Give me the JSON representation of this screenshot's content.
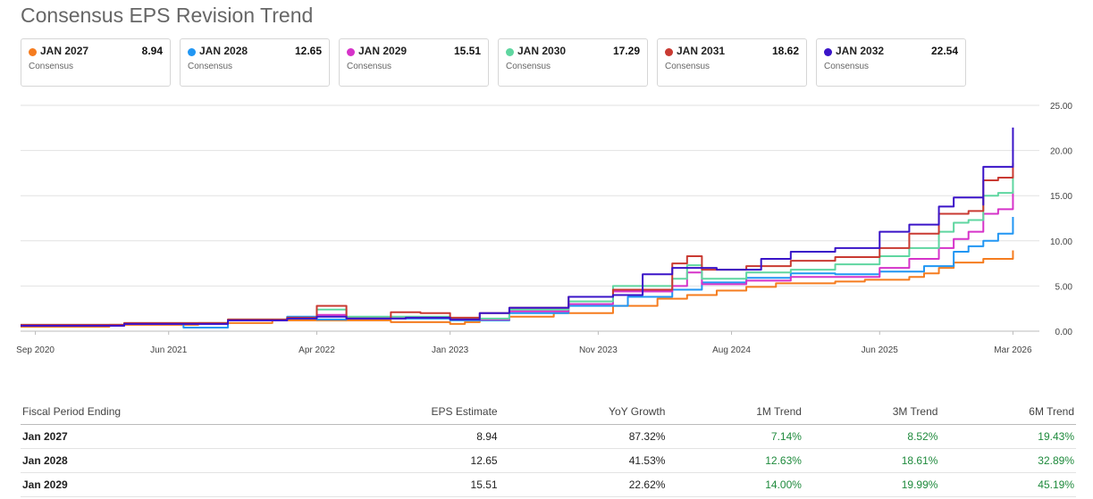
{
  "page_title": "Consensus EPS Revision Trend",
  "cards": [
    {
      "label": "JAN 2027",
      "value": "8.94",
      "sub": "Consensus",
      "color": "#f57c1f"
    },
    {
      "label": "JAN 2028",
      "value": "12.65",
      "sub": "Consensus",
      "color": "#2196f3"
    },
    {
      "label": "JAN 2029",
      "value": "15.51",
      "sub": "Consensus",
      "color": "#d633c9"
    },
    {
      "label": "JAN 2030",
      "value": "17.29",
      "sub": "Consensus",
      "color": "#5fd6a0"
    },
    {
      "label": "JAN 2031",
      "value": "18.62",
      "sub": "Consensus",
      "color": "#c93a32"
    },
    {
      "label": "JAN 2032",
      "value": "22.54",
      "sub": "Consensus",
      "color": "#3a14c8"
    }
  ],
  "chart_data": {
    "type": "line",
    "title": "Consensus EPS Revision Trend",
    "xlabel": "",
    "ylabel": "",
    "ylim": [
      0,
      25
    ],
    "yticks": [
      "0.00",
      "5.00",
      "10.00",
      "15.00",
      "20.00",
      "25.00"
    ],
    "xlim": [
      "2020-08",
      "2026-04"
    ],
    "xticks": [
      {
        "label": "Sep 2020",
        "date": "2020-09"
      },
      {
        "label": "Jun 2021",
        "date": "2021-06"
      },
      {
        "label": "Apr 2022",
        "date": "2022-04"
      },
      {
        "label": "Jan 2023",
        "date": "2023-01"
      },
      {
        "label": "Nov 2023",
        "date": "2023-11"
      },
      {
        "label": "Aug 2024",
        "date": "2024-08"
      },
      {
        "label": "Jun 2025",
        "date": "2025-06"
      },
      {
        "label": "Mar 2026",
        "date": "2026-03"
      }
    ],
    "grid": true,
    "step": true,
    "series": [
      {
        "name": "JAN 2027",
        "color": "#f57c1f",
        "points": [
          [
            "2020-08",
            0.5
          ],
          [
            "2021-02",
            0.7
          ],
          [
            "2021-08",
            0.9
          ],
          [
            "2022-01",
            1.2
          ],
          [
            "2022-04",
            1.2
          ],
          [
            "2022-09",
            1.0
          ],
          [
            "2023-01",
            0.8
          ],
          [
            "2023-02",
            1.0
          ],
          [
            "2023-03",
            1.2
          ],
          [
            "2023-05",
            1.6
          ],
          [
            "2023-08",
            2.0
          ],
          [
            "2023-12",
            2.8
          ],
          [
            "2024-03",
            3.6
          ],
          [
            "2024-05",
            4.0
          ],
          [
            "2024-07",
            4.5
          ],
          [
            "2024-09",
            4.9
          ],
          [
            "2024-11",
            5.3
          ],
          [
            "2025-03",
            5.5
          ],
          [
            "2025-05",
            5.7
          ],
          [
            "2025-08",
            6.0
          ],
          [
            "2025-09",
            6.4
          ],
          [
            "2025-10",
            7.0
          ],
          [
            "2025-11",
            7.6
          ],
          [
            "2026-01",
            8.0
          ],
          [
            "2026-03",
            8.4
          ],
          [
            "2026-03",
            8.94
          ]
        ]
      },
      {
        "name": "JAN 2028",
        "color": "#2196f3",
        "points": [
          [
            "2020-08",
            0.6
          ],
          [
            "2021-03",
            0.8
          ],
          [
            "2021-07",
            0.4
          ],
          [
            "2021-10",
            1.2
          ],
          [
            "2022-02",
            1.6
          ],
          [
            "2022-04",
            1.3
          ],
          [
            "2022-06",
            1.5
          ],
          [
            "2022-10",
            1.4
          ],
          [
            "2023-01",
            1.2
          ],
          [
            "2023-05",
            2.0
          ],
          [
            "2023-09",
            2.8
          ],
          [
            "2024-01",
            3.8
          ],
          [
            "2024-04",
            4.6
          ],
          [
            "2024-06",
            5.4
          ],
          [
            "2024-09",
            5.9
          ],
          [
            "2024-12",
            6.4
          ],
          [
            "2025-03",
            6.3
          ],
          [
            "2025-06",
            6.6
          ],
          [
            "2025-09",
            7.2
          ],
          [
            "2025-11",
            8.8
          ],
          [
            "2025-12",
            9.4
          ],
          [
            "2026-01",
            10.0
          ],
          [
            "2026-02",
            10.8
          ],
          [
            "2026-03",
            11.3
          ],
          [
            "2026-03",
            12.65
          ]
        ]
      },
      {
        "name": "JAN 2029",
        "color": "#d633c9",
        "points": [
          [
            "2020-08",
            0.6
          ],
          [
            "2021-03",
            0.8
          ],
          [
            "2021-10",
            1.2
          ],
          [
            "2022-02",
            1.4
          ],
          [
            "2022-04",
            1.8
          ],
          [
            "2022-06",
            1.5
          ],
          [
            "2022-10",
            1.5
          ],
          [
            "2023-01",
            1.3
          ],
          [
            "2023-05",
            2.2
          ],
          [
            "2023-09",
            3.0
          ],
          [
            "2023-12",
            4.4
          ],
          [
            "2024-04",
            5.0
          ],
          [
            "2024-05",
            6.5
          ],
          [
            "2024-06",
            5.2
          ],
          [
            "2024-09",
            5.6
          ],
          [
            "2024-12",
            6.0
          ],
          [
            "2025-03",
            6.0
          ],
          [
            "2025-06",
            7.0
          ],
          [
            "2025-08",
            8.0
          ],
          [
            "2025-10",
            9.2
          ],
          [
            "2025-11",
            10.2
          ],
          [
            "2025-12",
            11.0
          ],
          [
            "2026-01",
            13.0
          ],
          [
            "2026-02",
            13.5
          ],
          [
            "2026-03",
            15.51
          ]
        ]
      },
      {
        "name": "JAN 2030",
        "color": "#5fd6a0",
        "points": [
          [
            "2020-08",
            0.7
          ],
          [
            "2021-03",
            0.9
          ],
          [
            "2021-10",
            1.3
          ],
          [
            "2022-02",
            1.4
          ],
          [
            "2022-04",
            2.4
          ],
          [
            "2022-06",
            1.6
          ],
          [
            "2022-10",
            1.6
          ],
          [
            "2023-01",
            1.4
          ],
          [
            "2023-05",
            2.4
          ],
          [
            "2023-09",
            3.3
          ],
          [
            "2023-12",
            5.0
          ],
          [
            "2024-04",
            5.8
          ],
          [
            "2024-05",
            7.3
          ],
          [
            "2024-06",
            5.8
          ],
          [
            "2024-09",
            6.5
          ],
          [
            "2024-12",
            6.8
          ],
          [
            "2025-03",
            7.4
          ],
          [
            "2025-06",
            8.3
          ],
          [
            "2025-08",
            9.2
          ],
          [
            "2025-10",
            11.0
          ],
          [
            "2025-11",
            12.0
          ],
          [
            "2025-12",
            12.3
          ],
          [
            "2026-01",
            15.0
          ],
          [
            "2026-02",
            15.3
          ],
          [
            "2026-03",
            17.29
          ]
        ]
      },
      {
        "name": "JAN 2031",
        "color": "#c93a32",
        "points": [
          [
            "2020-08",
            0.7
          ],
          [
            "2021-03",
            0.9
          ],
          [
            "2021-10",
            1.3
          ],
          [
            "2022-02",
            1.5
          ],
          [
            "2022-04",
            2.8
          ],
          [
            "2022-06",
            1.4
          ],
          [
            "2022-09",
            2.1
          ],
          [
            "2022-11",
            2.0
          ],
          [
            "2023-01",
            1.5
          ],
          [
            "2023-03",
            2.0
          ],
          [
            "2023-05",
            2.6
          ],
          [
            "2023-09",
            3.8
          ],
          [
            "2023-12",
            4.6
          ],
          [
            "2024-04",
            7.5
          ],
          [
            "2024-05",
            8.3
          ],
          [
            "2024-06",
            6.8
          ],
          [
            "2024-09",
            7.2
          ],
          [
            "2024-12",
            7.8
          ],
          [
            "2025-03",
            8.2
          ],
          [
            "2025-06",
            9.2
          ],
          [
            "2025-08",
            10.8
          ],
          [
            "2025-10",
            13.0
          ],
          [
            "2025-12",
            13.3
          ],
          [
            "2026-01",
            16.7
          ],
          [
            "2026-02",
            17.0
          ],
          [
            "2026-03",
            18.62
          ]
        ]
      },
      {
        "name": "JAN 2032",
        "color": "#3a14c8",
        "points": [
          [
            "2020-08",
            0.6
          ],
          [
            "2021-03",
            0.8
          ],
          [
            "2021-10",
            1.2
          ],
          [
            "2022-02",
            1.4
          ],
          [
            "2022-04",
            1.6
          ],
          [
            "2022-06",
            1.4
          ],
          [
            "2022-10",
            1.5
          ],
          [
            "2023-01",
            1.3
          ],
          [
            "2023-03",
            2.0
          ],
          [
            "2023-05",
            2.6
          ],
          [
            "2023-09",
            3.8
          ],
          [
            "2023-12",
            4.0
          ],
          [
            "2024-02",
            6.3
          ],
          [
            "2024-04",
            7.0
          ],
          [
            "2024-07",
            6.8
          ],
          [
            "2024-10",
            8.0
          ],
          [
            "2024-12",
            8.8
          ],
          [
            "2025-03",
            9.2
          ],
          [
            "2025-06",
            11.0
          ],
          [
            "2025-08",
            11.8
          ],
          [
            "2025-10",
            13.8
          ],
          [
            "2025-11",
            14.8
          ],
          [
            "2026-01",
            14.0
          ],
          [
            "2026-01",
            18.2
          ],
          [
            "2026-03",
            18.2
          ],
          [
            "2026-03",
            22.54
          ]
        ]
      }
    ]
  },
  "table": {
    "headers": [
      "Fiscal Period Ending",
      "EPS Estimate",
      "YoY Growth",
      "1M Trend",
      "3M Trend",
      "6M Trend"
    ],
    "rows": [
      [
        "Jan 2027",
        "8.94",
        "87.32%",
        "7.14%",
        "8.52%",
        "19.43%"
      ],
      [
        "Jan 2028",
        "12.65",
        "41.53%",
        "12.63%",
        "18.61%",
        "32.89%"
      ],
      [
        "Jan 2029",
        "15.51",
        "22.62%",
        "14.00%",
        "19.99%",
        "45.19%"
      ]
    ]
  }
}
